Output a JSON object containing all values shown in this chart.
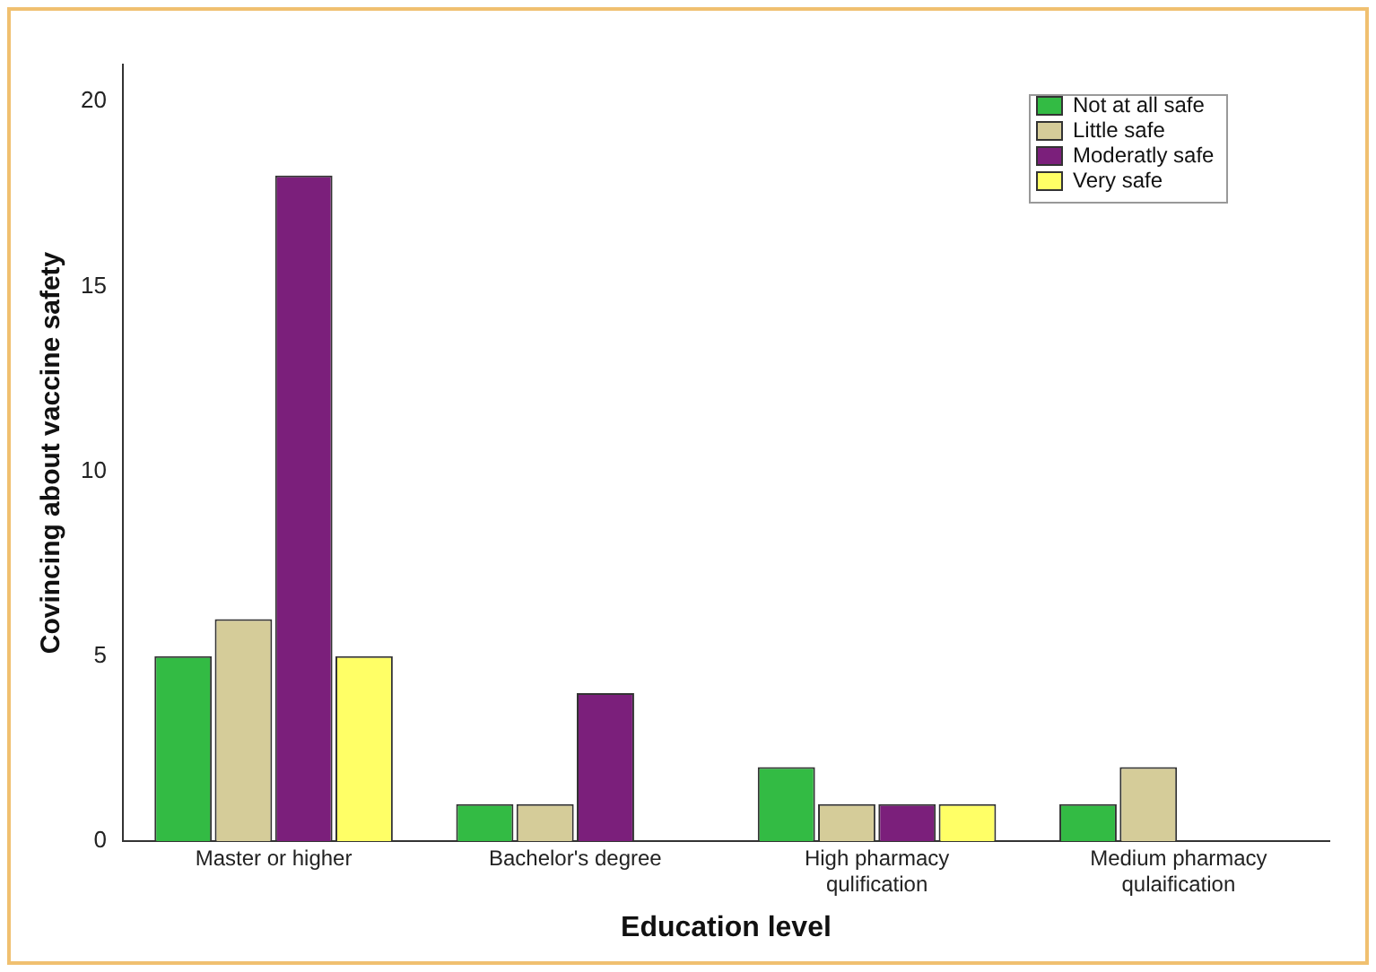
{
  "chart_data": {
    "type": "bar",
    "xlabel": "Education level",
    "ylabel": "Covincing about vaccine safety",
    "categories": [
      "Master or higher",
      "Bachelor's degree",
      "High pharmacy qulification",
      "Medium pharmacy qulaification"
    ],
    "series": [
      {
        "name": "Not at all safe",
        "color": "#33bb44",
        "values": [
          5,
          1,
          2,
          1
        ]
      },
      {
        "name": "Little safe",
        "color": "#d5cc99",
        "values": [
          6,
          1,
          1,
          2
        ]
      },
      {
        "name": "Moderatly safe",
        "color": "#7b1f7b",
        "values": [
          18,
          4,
          1,
          0
        ]
      },
      {
        "name": "Very safe",
        "color": "#ffff66",
        "values": [
          5,
          0,
          1,
          0
        ]
      }
    ],
    "ylim": [
      0,
      21
    ],
    "yticks": [
      0,
      5,
      10,
      15,
      20
    ],
    "grid": false,
    "legend": "top right"
  }
}
